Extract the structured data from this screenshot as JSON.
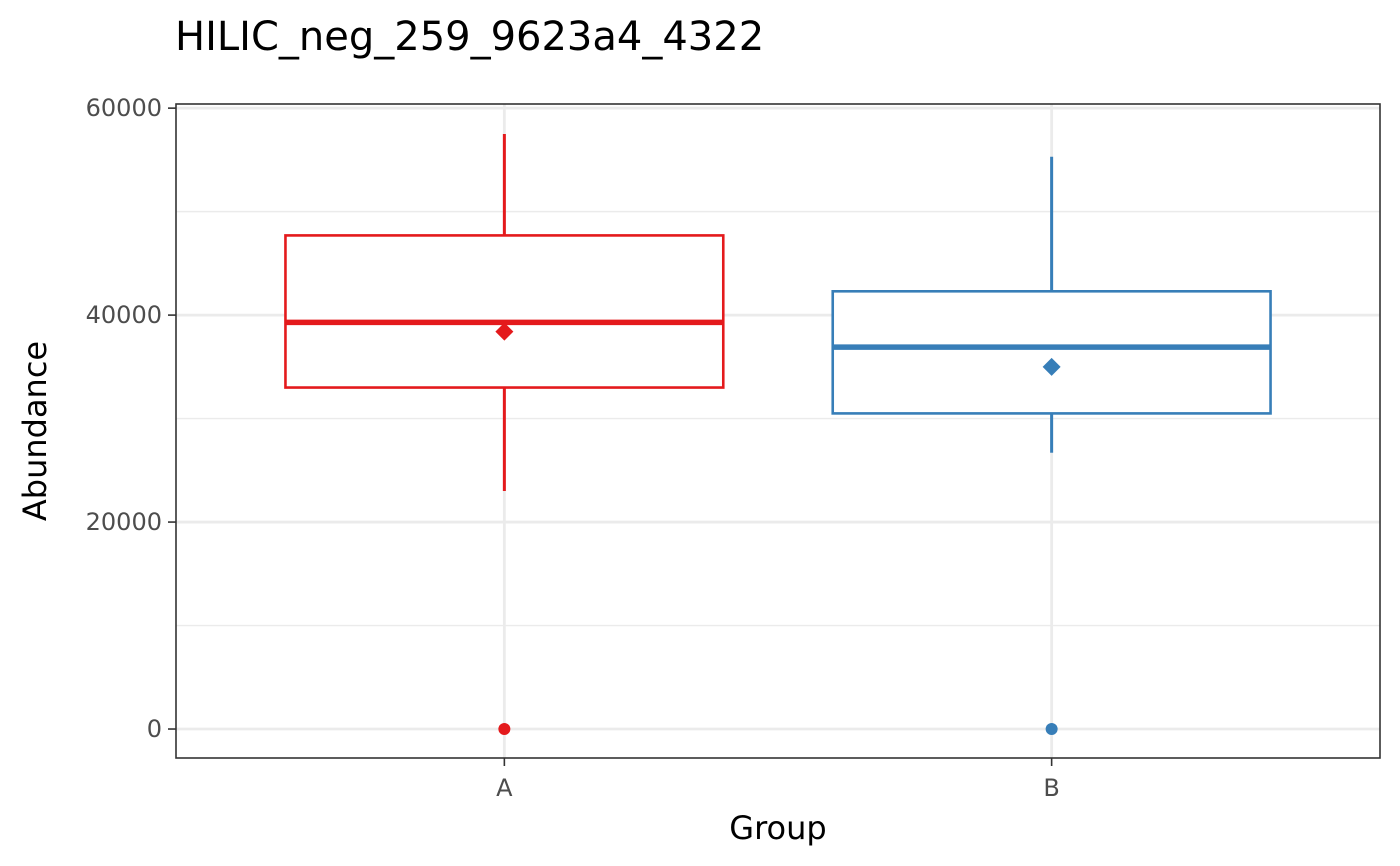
{
  "chart_data": {
    "type": "box",
    "title": "HILIC_neg_259_9623a4_4322",
    "xlabel": "Group",
    "ylabel": "Abundance",
    "categories": [
      "A",
      "B"
    ],
    "y_ticks": [
      0,
      20000,
      40000,
      60000
    ],
    "y_tick_labels": [
      "0",
      "20000",
      "40000",
      "60000"
    ],
    "ylim": [
      -2800,
      60400
    ],
    "grid": true,
    "legend": "none",
    "series": [
      {
        "category": "A",
        "color": "#e41a1c",
        "whisker_low": 23000,
        "q1": 33000,
        "median": 39300,
        "q3": 47700,
        "whisker_high": 57500,
        "mean": 38400,
        "outliers": [
          0
        ]
      },
      {
        "category": "B",
        "color": "#377eb8",
        "whisker_low": 26700,
        "q1": 30500,
        "median": 36900,
        "q3": 42300,
        "whisker_high": 55300,
        "mean": 35000,
        "outliers": [
          0
        ]
      }
    ]
  }
}
